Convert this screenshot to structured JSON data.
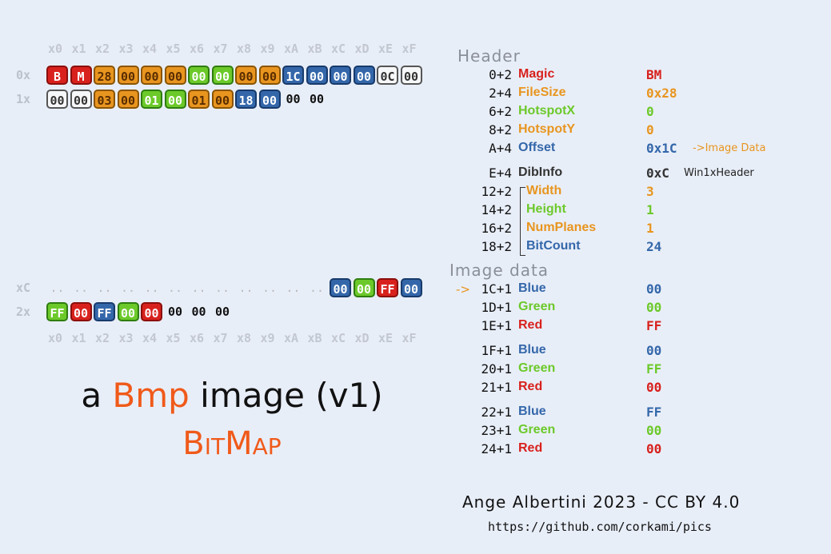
{
  "colors": {
    "magic": "#d8211d",
    "size": "#e8951f",
    "hotspot_x": "#6cc92a",
    "offset": "#3467aa",
    "dib": "#333333"
  },
  "hex_view": {
    "col_headers": [
      "x0",
      "x1",
      "x2",
      "x3",
      "x4",
      "x5",
      "x6",
      "x7",
      "x8",
      "x9",
      "xA",
      "xB",
      "xC",
      "xD",
      "xE",
      "xF"
    ],
    "rows": [
      {
        "label": "0x",
        "bytes": [
          {
            "v": "B",
            "c": "red"
          },
          {
            "v": "M",
            "c": "red"
          },
          {
            "v": "28",
            "c": "orange"
          },
          {
            "v": "00",
            "c": "orange"
          },
          {
            "v": "00",
            "c": "orange"
          },
          {
            "v": "00",
            "c": "orange"
          },
          {
            "v": "00",
            "c": "green"
          },
          {
            "v": "00",
            "c": "green"
          },
          {
            "v": "00",
            "c": "orange"
          },
          {
            "v": "00",
            "c": "orange"
          },
          {
            "v": "1C",
            "c": "blue"
          },
          {
            "v": "00",
            "c": "blue"
          },
          {
            "v": "00",
            "c": "blue"
          },
          {
            "v": "00",
            "c": "blue"
          },
          {
            "v": "0C",
            "c": "white"
          },
          {
            "v": "00",
            "c": "white"
          }
        ]
      },
      {
        "label": "1x",
        "bytes": [
          {
            "v": "00",
            "c": "white"
          },
          {
            "v": "00",
            "c": "white"
          },
          {
            "v": "03",
            "c": "orange"
          },
          {
            "v": "00",
            "c": "orange"
          },
          {
            "v": "01",
            "c": "green"
          },
          {
            "v": "00",
            "c": "green"
          },
          {
            "v": "01",
            "c": "orange"
          },
          {
            "v": "00",
            "c": "orange"
          },
          {
            "v": "18",
            "c": "blue"
          },
          {
            "v": "00",
            "c": "blue"
          },
          {
            "v": "00",
            "c": "plain"
          },
          {
            "v": "00",
            "c": "plain"
          }
        ]
      },
      {
        "label": "xC",
        "bytes": [
          {
            "v": "..",
            "c": "dots"
          },
          {
            "v": "..",
            "c": "dots"
          },
          {
            "v": "..",
            "c": "dots"
          },
          {
            "v": "..",
            "c": "dots"
          },
          {
            "v": "..",
            "c": "dots"
          },
          {
            "v": "..",
            "c": "dots"
          },
          {
            "v": "..",
            "c": "dots"
          },
          {
            "v": "..",
            "c": "dots"
          },
          {
            "v": "..",
            "c": "dots"
          },
          {
            "v": "..",
            "c": "dots"
          },
          {
            "v": "..",
            "c": "dots"
          },
          {
            "v": "..",
            "c": "dots"
          },
          {
            "v": "00",
            "c": "blue"
          },
          {
            "v": "00",
            "c": "green"
          },
          {
            "v": "FF",
            "c": "red"
          },
          {
            "v": "00",
            "c": "blue"
          }
        ]
      },
      {
        "label": "2x",
        "bytes": [
          {
            "v": "FF",
            "c": "green"
          },
          {
            "v": "00",
            "c": "red"
          },
          {
            "v": "FF",
            "c": "blue"
          },
          {
            "v": "00",
            "c": "green"
          },
          {
            "v": "00",
            "c": "red"
          },
          {
            "v": "00",
            "c": "plain"
          },
          {
            "v": "00",
            "c": "plain"
          },
          {
            "v": "00",
            "c": "plain"
          }
        ]
      }
    ]
  },
  "title": {
    "line1_pre": "a ",
    "line1_accent": "Bmp",
    "line1_post": " image (v1)",
    "line2_a": "B",
    "line2_b": "IT",
    "line2_c": "M",
    "line2_d": "AP"
  },
  "header_section": {
    "title": "Header",
    "fields": [
      {
        "off": "0+2",
        "name": "Magic",
        "val": "BM",
        "c": "red"
      },
      {
        "off": "2+4",
        "name": "FileSize",
        "val": "0x28",
        "c": "orange"
      },
      {
        "off": "6+2",
        "name": "HotspotX",
        "val": "0",
        "c": "green"
      },
      {
        "off": "8+2",
        "name": "HotspotY",
        "val": "0",
        "c": "orange"
      },
      {
        "off": "A+4",
        "name": "Offset",
        "val": "0x1C",
        "c": "blue",
        "note": "->Image Data"
      },
      {
        "off": "E+4",
        "name": "DibInfo",
        "val": "0xC",
        "c": "white",
        "note": "Win1xHeader"
      },
      {
        "off": "12+2",
        "name": "Width",
        "val": "3",
        "c": "orange"
      },
      {
        "off": "14+2",
        "name": "Height",
        "val": "1",
        "c": "green"
      },
      {
        "off": "16+2",
        "name": "NumPlanes",
        "val": "1",
        "c": "orange"
      },
      {
        "off": "18+2",
        "name": "BitCount",
        "val": "24",
        "c": "blue"
      }
    ]
  },
  "image_section": {
    "title": "Image data",
    "arrow": "->",
    "fields": [
      {
        "off": "1C+1",
        "name": "Blue",
        "val": "00",
        "c": "blue"
      },
      {
        "off": "1D+1",
        "name": "Green",
        "val": "00",
        "c": "green"
      },
      {
        "off": "1E+1",
        "name": "Red",
        "val": "FF",
        "c": "red"
      },
      {
        "off": "1F+1",
        "name": "Blue",
        "val": "00",
        "c": "blue"
      },
      {
        "off": "20+1",
        "name": "Green",
        "val": "FF",
        "c": "green"
      },
      {
        "off": "21+1",
        "name": "Red",
        "val": "00",
        "c": "red"
      },
      {
        "off": "22+1",
        "name": "Blue",
        "val": "FF",
        "c": "blue"
      },
      {
        "off": "23+1",
        "name": "Green",
        "val": "00",
        "c": "green"
      },
      {
        "off": "24+1",
        "name": "Red",
        "val": "00",
        "c": "red"
      }
    ]
  },
  "credit": {
    "author": "Ange Albertini 2023 - CC BY 4.0",
    "url": "https://github.com/corkami/pics"
  }
}
